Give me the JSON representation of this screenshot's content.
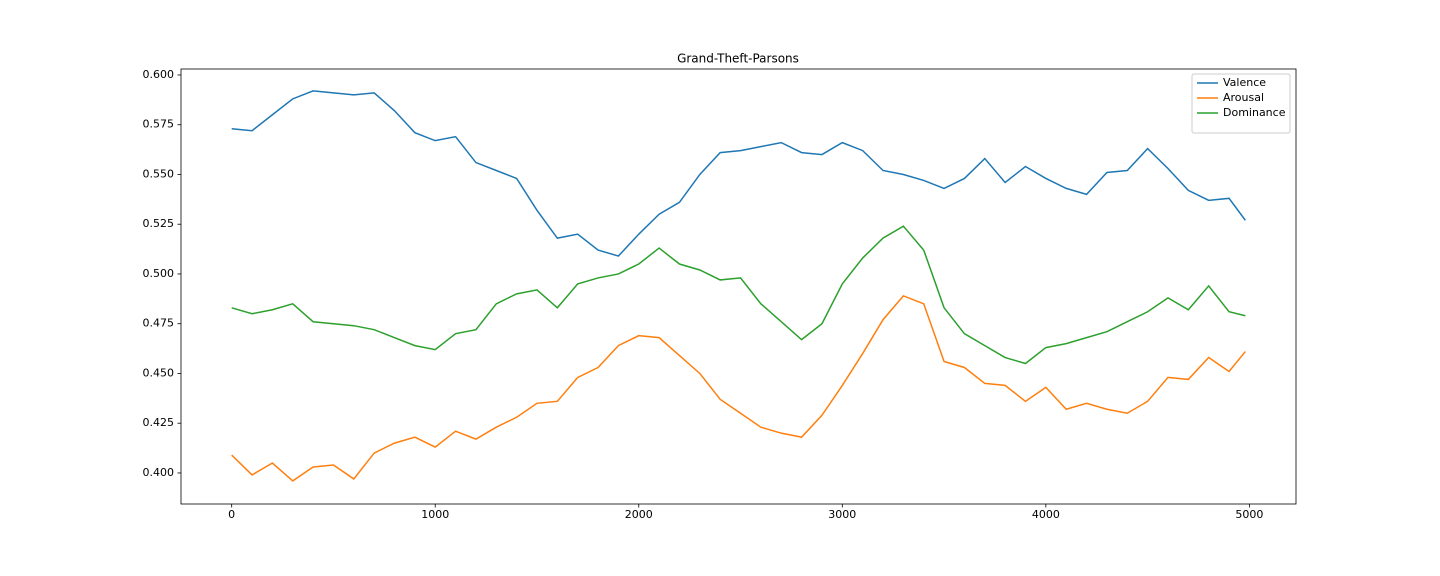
{
  "chart_data": {
    "type": "line",
    "title": "Grand-Theft-Parsons",
    "x": [
      0,
      100,
      200,
      300,
      400,
      500,
      600,
      700,
      800,
      900,
      1000,
      1100,
      1200,
      1300,
      1400,
      1500,
      1600,
      1700,
      1800,
      1900,
      2000,
      2100,
      2200,
      2300,
      2400,
      2500,
      2600,
      2700,
      2800,
      2900,
      3000,
      3100,
      3200,
      3300,
      3400,
      3500,
      3600,
      3700,
      3800,
      3900,
      4000,
      4100,
      4200,
      4300,
      4400,
      4500,
      4600,
      4700,
      4800,
      4900,
      4980
    ],
    "series": [
      {
        "name": "Valence",
        "color": "#1f77b4",
        "values": [
          0.573,
          0.572,
          0.58,
          0.588,
          0.592,
          0.591,
          0.59,
          0.591,
          0.582,
          0.571,
          0.567,
          0.569,
          0.556,
          0.552,
          0.548,
          0.532,
          0.518,
          0.52,
          0.512,
          0.509,
          0.52,
          0.53,
          0.536,
          0.55,
          0.561,
          0.562,
          0.564,
          0.566,
          0.561,
          0.56,
          0.566,
          0.562,
          0.552,
          0.55,
          0.547,
          0.543,
          0.548,
          0.558,
          0.546,
          0.554,
          0.548,
          0.543,
          0.54,
          0.551,
          0.552,
          0.563,
          0.553,
          0.542,
          0.537,
          0.538,
          0.527
        ]
      },
      {
        "name": "Arousal",
        "color": "#ff7f0e",
        "values": [
          0.409,
          0.399,
          0.405,
          0.396,
          0.403,
          0.404,
          0.397,
          0.41,
          0.415,
          0.418,
          0.413,
          0.421,
          0.417,
          0.423,
          0.428,
          0.435,
          0.436,
          0.448,
          0.453,
          0.464,
          0.469,
          0.468,
          0.459,
          0.45,
          0.437,
          0.43,
          0.423,
          0.42,
          0.418,
          0.429,
          0.444,
          0.46,
          0.477,
          0.489,
          0.485,
          0.456,
          0.453,
          0.445,
          0.444,
          0.436,
          0.443,
          0.432,
          0.435,
          0.432,
          0.43,
          0.436,
          0.448,
          0.447,
          0.458,
          0.451,
          0.461
        ]
      },
      {
        "name": "Dominance",
        "color": "#2ca02c",
        "values": [
          0.483,
          0.48,
          0.482,
          0.485,
          0.476,
          0.475,
          0.474,
          0.472,
          0.468,
          0.464,
          0.462,
          0.47,
          0.472,
          0.485,
          0.49,
          0.492,
          0.483,
          0.495,
          0.498,
          0.5,
          0.505,
          0.513,
          0.505,
          0.502,
          0.497,
          0.498,
          0.485,
          0.476,
          0.467,
          0.475,
          0.495,
          0.508,
          0.518,
          0.524,
          0.512,
          0.483,
          0.47,
          0.464,
          0.458,
          0.455,
          0.463,
          0.465,
          0.468,
          0.471,
          0.476,
          0.481,
          0.488,
          0.482,
          0.494,
          0.481,
          0.479
        ]
      }
    ],
    "xlim": [
      -249,
      5229
    ],
    "ylim": [
      0.3844,
      0.603
    ],
    "xticks": [
      0,
      1000,
      2000,
      3000,
      4000,
      5000
    ],
    "yticks": [
      {
        "value": 0.4,
        "label": "0.400"
      },
      0.425,
      {
        "value": 0.45,
        "label": "0.450"
      },
      0.475,
      {
        "value": 0.5,
        "label": "0.500"
      },
      0.525,
      {
        "value": 0.55,
        "label": "0.550"
      },
      0.575,
      {
        "value": 0.6,
        "label": "0.600"
      }
    ],
    "legend": "upper right"
  }
}
